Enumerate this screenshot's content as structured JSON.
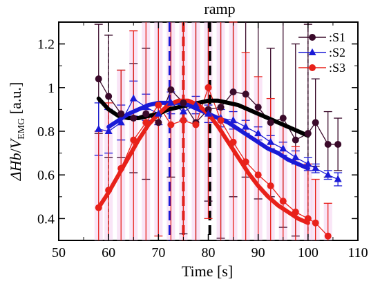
{
  "chart_data": {
    "type": "line",
    "title": "ramp",
    "xlabel": "Time [s]",
    "ylabel_main": "ΔHb",
    "ylabel_slash": "/",
    "ylabel_v": "V",
    "ylabel_sub": "EMG",
    "ylabel_unit": " [a.u.]",
    "xlim": [
      50,
      110
    ],
    "ylim": [
      0.3,
      1.3
    ],
    "xticks": [
      50,
      60,
      70,
      80,
      90,
      100,
      110
    ],
    "yticks": [
      0.4,
      0.6,
      0.8,
      1.0,
      1.2
    ],
    "ytick_labels": [
      "0.4",
      "0.6",
      "0.8",
      "1",
      "1.2"
    ],
    "legend_position": "top-right",
    "series": [
      {
        "name": ":S1",
        "color": "#3a0a2a",
        "marker": "circle",
        "x": [
          58,
          60,
          62.5,
          65,
          67.5,
          70,
          72.5,
          75,
          77.5,
          80,
          82.5,
          85,
          87.5,
          90,
          92.5,
          95,
          97.5,
          100,
          101.5,
          104,
          106
        ],
        "y": [
          1.04,
          0.96,
          0.88,
          0.86,
          0.88,
          0.84,
          0.99,
          0.93,
          0.84,
          0.9,
          0.91,
          0.98,
          0.97,
          0.91,
          0.84,
          0.86,
          0.76,
          0.79,
          0.84,
          0.74,
          0.74
        ],
        "err": [
          0.25,
          0.28,
          0.2,
          0.25,
          0.3,
          0.6,
          0.4,
          0.6,
          0.6,
          0.42,
          0.6,
          0.48,
          0.38,
          0.42,
          0.34,
          0.5,
          0.44,
          0.5,
          0.2,
          0.15,
          0.12
        ]
      },
      {
        "name": ":S2",
        "color": "#1a1ad6",
        "marker": "triangle",
        "x": [
          58,
          60,
          62.5,
          65,
          67.5,
          70,
          72.5,
          75,
          77.5,
          80,
          82.5,
          85,
          87.5,
          90,
          92.5,
          95,
          97.5,
          100,
          101.5,
          104,
          106
        ],
        "y": [
          0.81,
          0.8,
          0.84,
          0.95,
          0.91,
          0.88,
          0.93,
          0.89,
          0.92,
          0.88,
          0.86,
          0.85,
          0.82,
          0.79,
          0.75,
          0.72,
          0.68,
          0.65,
          0.63,
          0.6,
          0.58
        ],
        "err": [
          0.12,
          0.1,
          0.08,
          0.08,
          0.06,
          0.05,
          0.05,
          0.04,
          0.04,
          0.04,
          0.04,
          0.04,
          0.03,
          0.03,
          0.03,
          0.03,
          0.03,
          0.03,
          0.02,
          0.02,
          0.03
        ]
      },
      {
        "name": ":S3",
        "color": "#e8211a",
        "marker": "circle",
        "x": [
          58,
          60,
          62.5,
          65,
          67.5,
          70,
          72.5,
          75,
          77.5,
          80,
          82.5,
          85,
          87.5,
          90,
          92.5,
          95,
          97.5,
          100,
          101.5,
          104
        ],
        "y": [
          0.45,
          0.53,
          0.63,
          0.76,
          0.84,
          0.92,
          0.83,
          0.85,
          0.83,
          1.0,
          0.85,
          0.75,
          0.66,
          0.6,
          0.55,
          0.48,
          0.43,
          0.4,
          0.38,
          0.32
        ],
        "err": [
          0.35,
          0.4,
          0.45,
          0.5,
          0.55,
          0.6,
          0.6,
          0.6,
          0.6,
          0.6,
          0.6,
          0.55,
          0.5,
          0.45,
          0.4,
          0.35,
          0.3,
          0.25,
          0.2,
          0.15
        ]
      }
    ],
    "fit_curves": [
      {
        "color": "#000000",
        "x": [
          58,
          60,
          62,
          64,
          66,
          68,
          70,
          72,
          74,
          76,
          78,
          80,
          82,
          84,
          86,
          88,
          90,
          92,
          94,
          96,
          98,
          100
        ],
        "y": [
          0.95,
          0.9,
          0.87,
          0.86,
          0.86,
          0.87,
          0.88,
          0.9,
          0.91,
          0.92,
          0.93,
          0.94,
          0.94,
          0.93,
          0.92,
          0.9,
          0.88,
          0.86,
          0.84,
          0.82,
          0.8,
          0.78
        ]
      },
      {
        "color": "#1a1ad6",
        "x": [
          60,
          62,
          64,
          66,
          68,
          70,
          72,
          74,
          76,
          78,
          80,
          82,
          84,
          86,
          88,
          90,
          92,
          94,
          96,
          98,
          100
        ],
        "y": [
          0.82,
          0.85,
          0.88,
          0.9,
          0.92,
          0.93,
          0.93,
          0.93,
          0.92,
          0.9,
          0.88,
          0.86,
          0.84,
          0.81,
          0.78,
          0.75,
          0.72,
          0.7,
          0.67,
          0.65,
          0.63
        ]
      },
      {
        "color": "#e8211a",
        "x": [
          58,
          60,
          62,
          64,
          66,
          68,
          70,
          72,
          74,
          76,
          78,
          80,
          82,
          84,
          86,
          88,
          90,
          92,
          94,
          96,
          98,
          100
        ],
        "y": [
          0.45,
          0.52,
          0.6,
          0.68,
          0.76,
          0.83,
          0.88,
          0.92,
          0.94,
          0.94,
          0.92,
          0.88,
          0.82,
          0.75,
          0.68,
          0.61,
          0.55,
          0.5,
          0.46,
          0.43,
          0.4,
          0.38
        ]
      }
    ],
    "vlines": [
      {
        "x": 60,
        "color": "#000000",
        "style": "thin-dashed"
      },
      {
        "x": 72.3,
        "color": "#1a1ad6",
        "style": "thick-dashed"
      },
      {
        "x": 75,
        "color": "#e8211a",
        "style": "thick-dashed"
      },
      {
        "x": 80.3,
        "color": "#000000",
        "style": "thick-dashed"
      },
      {
        "x": 100,
        "color": "#000000",
        "style": "thin-dashed"
      }
    ]
  }
}
